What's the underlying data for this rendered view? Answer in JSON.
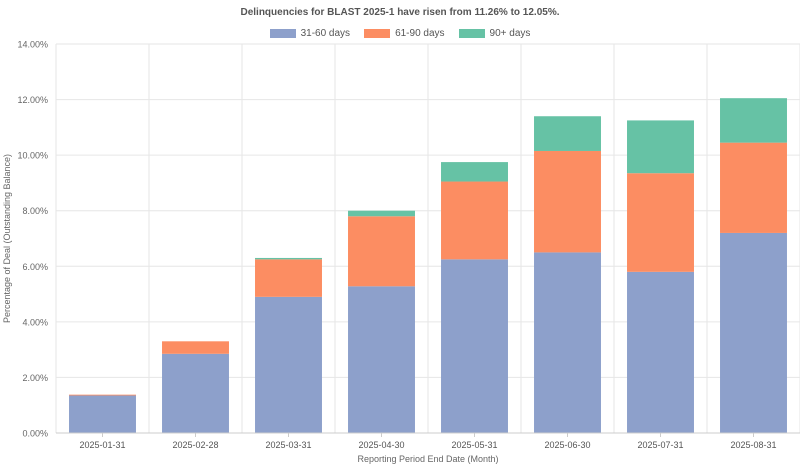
{
  "chart_data": {
    "type": "bar",
    "stacked": true,
    "title": "Delinquencies for BLAST 2025-1 have risen from 11.26% to 12.05%.",
    "xlabel": "Reporting Period End Date (Month)",
    "ylabel": "Percentage of Deal (Outstanding Balance)",
    "ylim": [
      0,
      14
    ],
    "yticks": [
      0,
      2,
      4,
      6,
      8,
      10,
      12,
      14
    ],
    "ytick_labels": [
      "0.00%",
      "2.00%",
      "4.00%",
      "6.00%",
      "8.00%",
      "10.00%",
      "12.00%",
      "14.00%"
    ],
    "grid": true,
    "legend_position": "top-center",
    "categories": [
      "2025-01-31",
      "2025-02-28",
      "2025-03-31",
      "2025-04-30",
      "2025-05-31",
      "2025-06-30",
      "2025-07-31",
      "2025-08-31"
    ],
    "series": [
      {
        "name": "31-60 days",
        "color": "#8da0cb",
        "values": [
          1.35,
          2.85,
          4.9,
          5.28,
          6.25,
          6.5,
          5.8,
          7.2
        ]
      },
      {
        "name": "61-90 days",
        "color": "#fc8d62",
        "values": [
          0.03,
          0.45,
          1.35,
          2.52,
          2.8,
          3.65,
          3.55,
          3.25
        ]
      },
      {
        "name": "90+ days",
        "color": "#66c2a5",
        "values": [
          0.0,
          0.0,
          0.05,
          0.2,
          0.7,
          1.25,
          1.9,
          1.6
        ]
      }
    ]
  }
}
